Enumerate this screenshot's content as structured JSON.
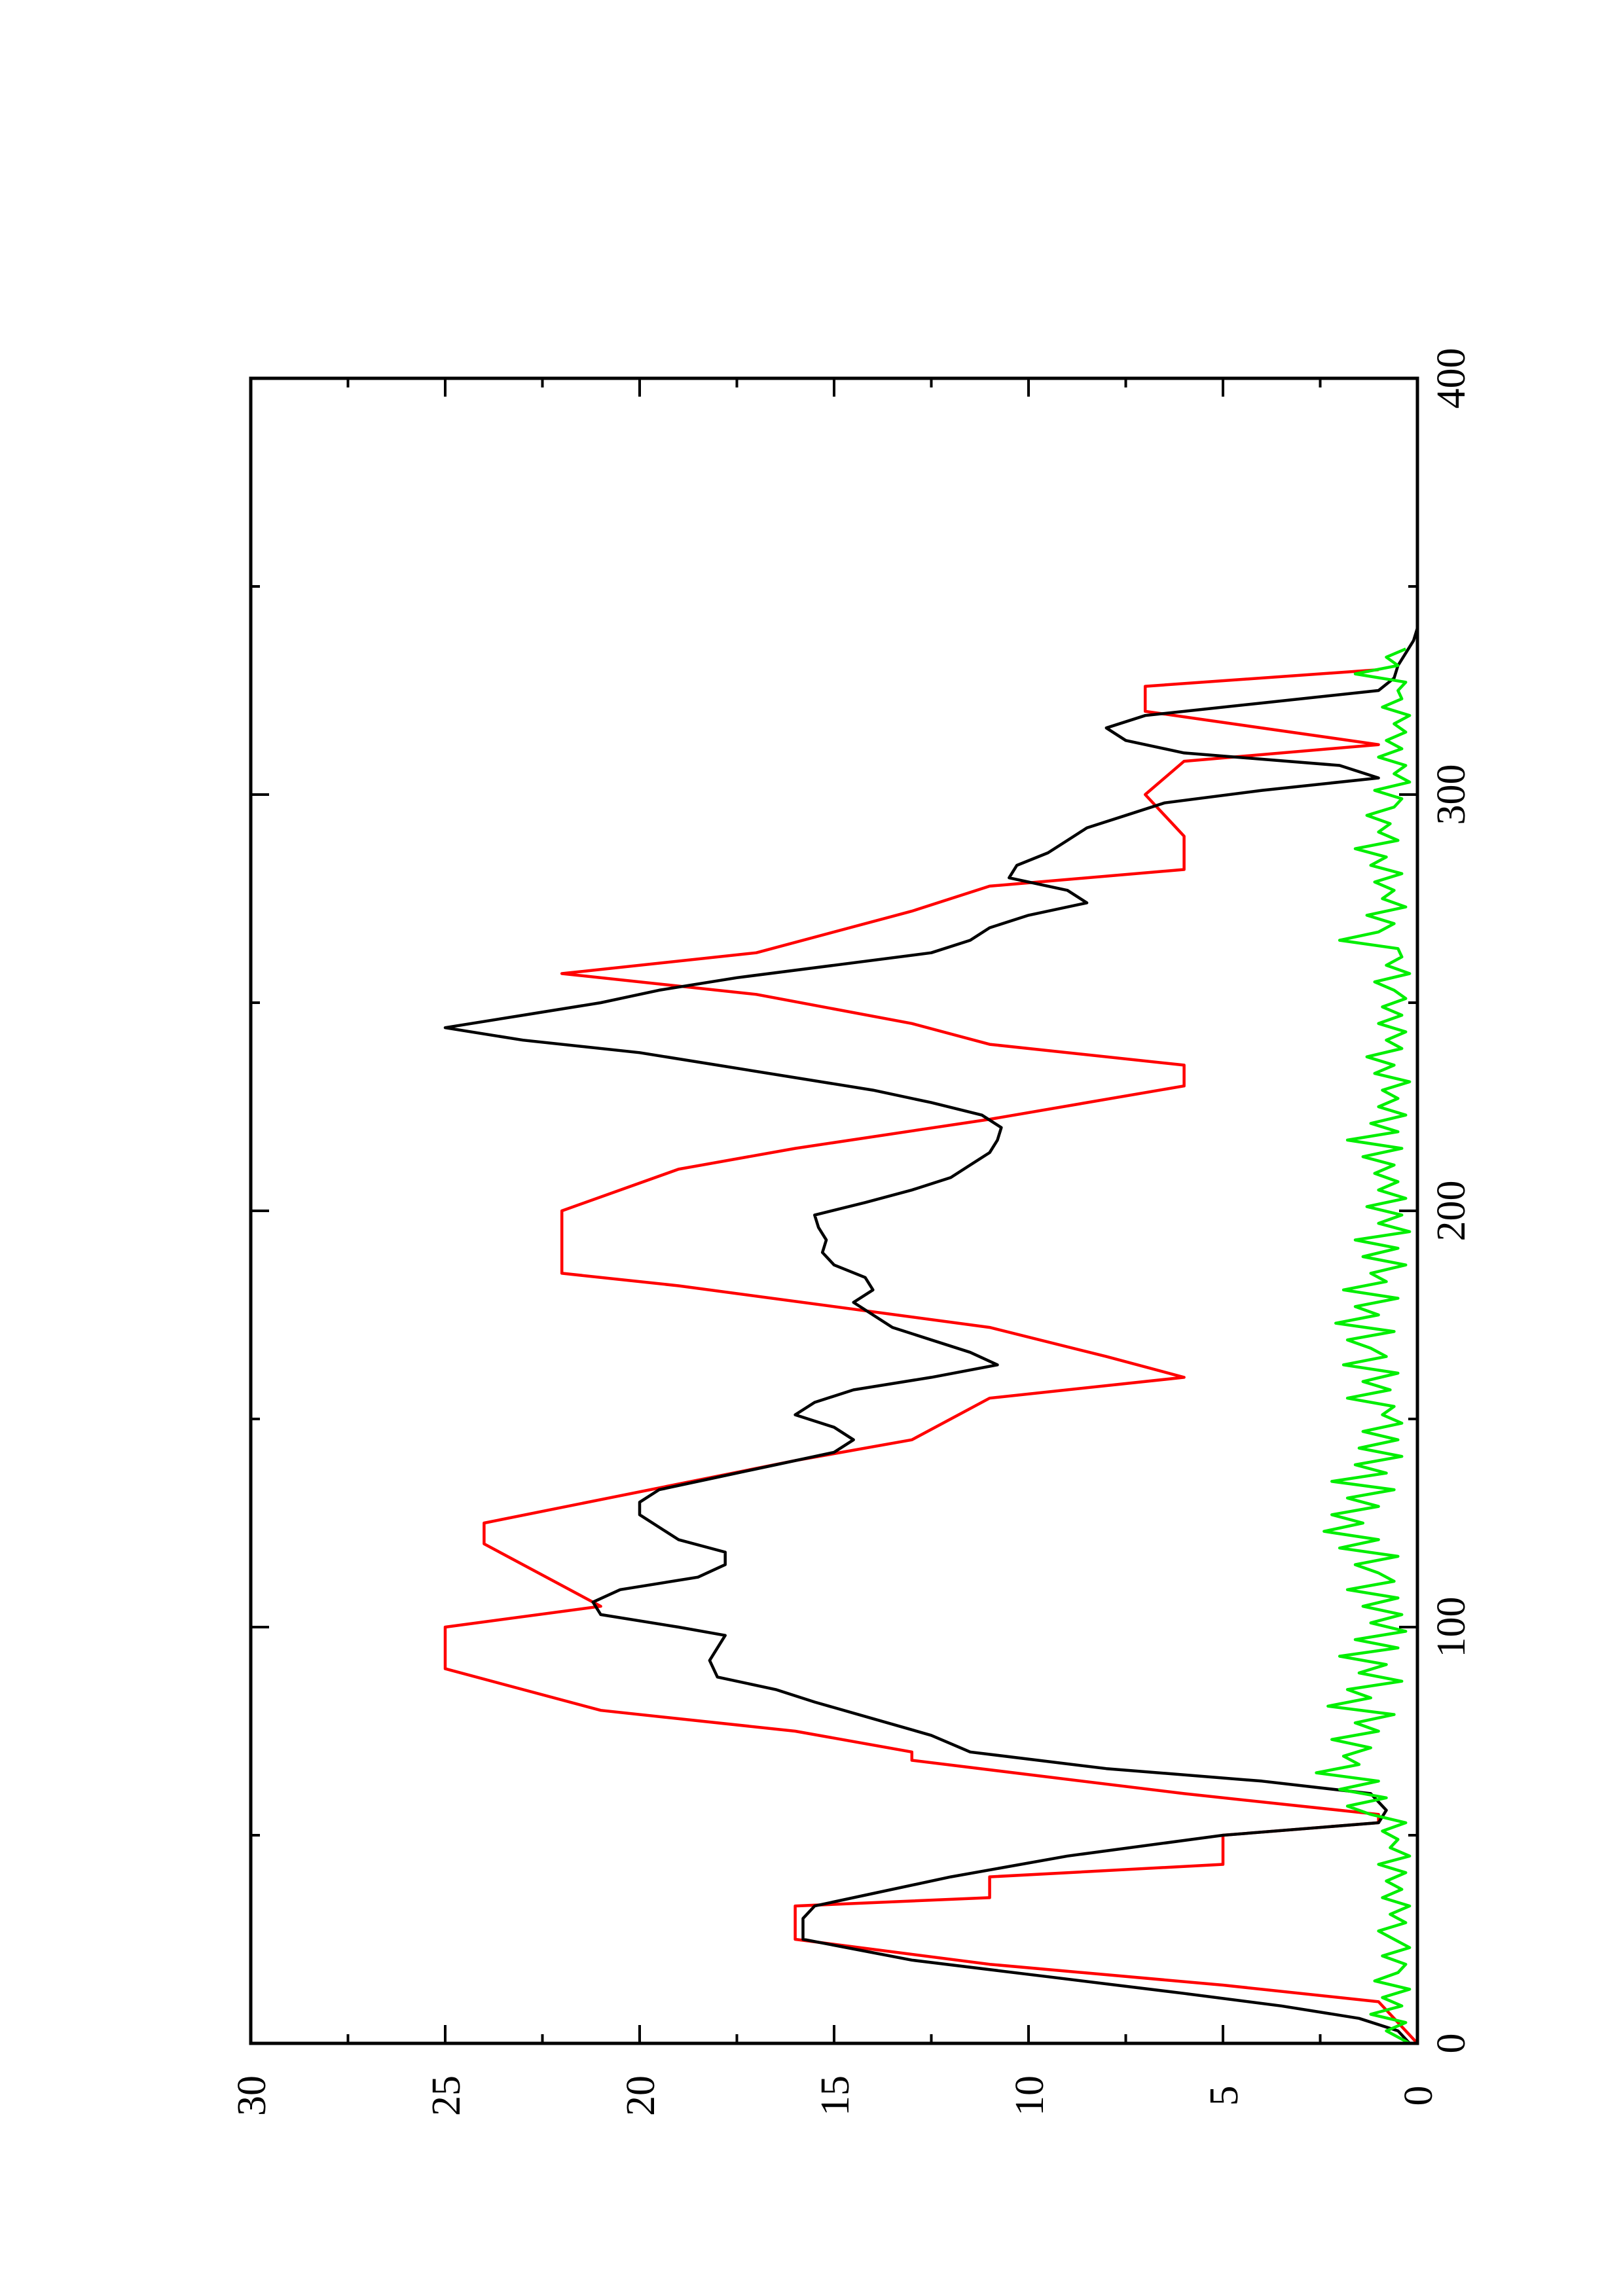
{
  "chart_data": {
    "type": "line",
    "orientation": "rotated-90-ccw",
    "title": "",
    "xlabel": "",
    "ylabel": "",
    "xlim": [
      0,
      400
    ],
    "ylim": [
      0,
      30
    ],
    "x_ticks": [
      0,
      100,
      200,
      300,
      400
    ],
    "y_ticks": [
      0,
      5,
      10,
      15,
      20,
      25,
      30
    ],
    "x_tick_labels": [
      "0",
      "100",
      "200",
      "300",
      "400"
    ],
    "y_tick_labels": [
      "0",
      "5",
      "10",
      "15",
      "20",
      "25",
      "30"
    ],
    "grid": false,
    "legend": "none",
    "series": [
      {
        "color": "#ff0000",
        "x": [
          0,
          10,
          10,
          14,
          14,
          19,
          19,
          25,
          25,
          33,
          33,
          35,
          35,
          40,
          40,
          43,
          43,
          50,
          50,
          53,
          53,
          55,
          55,
          60,
          60,
          68,
          68,
          70,
          70,
          75,
          75,
          80,
          80,
          90,
          90,
          100,
          100,
          105,
          105,
          120,
          120,
          125,
          125,
          140,
          140,
          145,
          145,
          155,
          155,
          160,
          160,
          165,
          165,
          172,
          172,
          182,
          182,
          185,
          185,
          200,
          200,
          210,
          210,
          215,
          215,
          222,
          222,
          230,
          230,
          235,
          235,
          240,
          240,
          245,
          245,
          252,
          252,
          257,
          257,
          262,
          262,
          272,
          272,
          278,
          278,
          282,
          282,
          290,
          290,
          300,
          300,
          308,
          308,
          312,
          312,
          320,
          320,
          326,
          326,
          330
        ],
        "y": [
          0,
          1,
          1,
          5,
          5,
          11,
          11,
          16,
          16,
          16,
          16,
          11,
          11,
          11,
          11,
          5,
          5,
          5,
          5,
          1,
          1,
          1,
          1,
          6,
          6,
          13,
          13,
          13,
          13,
          16,
          16,
          21,
          21,
          25,
          25,
          25,
          25,
          21,
          21,
          24,
          24,
          24,
          24,
          16,
          16,
          13,
          13,
          11,
          11,
          6,
          6,
          8,
          8,
          11,
          11,
          19,
          19,
          22,
          22,
          22,
          22,
          19,
          19,
          16,
          16,
          11,
          11,
          6,
          6,
          6,
          6,
          11,
          11,
          13,
          13,
          17,
          17,
          22,
          22,
          17,
          17,
          13,
          13,
          11,
          11,
          6,
          6,
          6,
          6,
          7,
          7,
          6,
          6,
          1,
          1,
          7,
          7,
          7,
          7,
          1
        ]
      },
      {
        "color": "#000000",
        "x": [
          0,
          3,
          6,
          9,
          12,
          16,
          20,
          25,
          30,
          33,
          36,
          40,
          45,
          50,
          53,
          56,
          60,
          63,
          66,
          70,
          74,
          78,
          82,
          85,
          88,
          92,
          95,
          98,
          100,
          103,
          106,
          109,
          112,
          115,
          118,
          121,
          124,
          127,
          130,
          133,
          136,
          139,
          142,
          145,
          148,
          151,
          154,
          157,
          160,
          163,
          166,
          169,
          172,
          175,
          178,
          181,
          184,
          187,
          190,
          193,
          196,
          199,
          202,
          205,
          208,
          211,
          214,
          217,
          220,
          223,
          226,
          229,
          232,
          235,
          238,
          241,
          244,
          247,
          250,
          253,
          256,
          259,
          262,
          265,
          268,
          271,
          274,
          277,
          280,
          283,
          286,
          289,
          292,
          295,
          298,
          301,
          304,
          307,
          310,
          313,
          316,
          319,
          322,
          325,
          328,
          331,
          334,
          337,
          340
        ],
        "y": [
          0.2,
          0.5,
          1.5,
          3.5,
          6,
          9.5,
          13,
          15.8,
          15.8,
          15.5,
          14,
          12,
          9,
          5,
          1,
          0.8,
          1.2,
          4,
          8,
          11.5,
          12.5,
          14,
          15.5,
          16.5,
          18,
          18.2,
          18,
          17.8,
          19,
          21,
          21.2,
          20.5,
          18.5,
          17.8,
          17.8,
          19,
          19.5,
          20,
          20,
          19.5,
          18,
          16.5,
          15,
          14.5,
          15,
          16,
          15.5,
          14.5,
          12.5,
          10.8,
          11.5,
          12.5,
          13.5,
          14,
          14.5,
          14,
          14.2,
          15,
          15.3,
          15.2,
          15.4,
          15.5,
          14.2,
          13,
          12,
          11.5,
          11,
          10.8,
          10.7,
          11.2,
          12.5,
          14,
          16,
          18,
          20,
          23,
          25,
          23,
          21,
          19.5,
          17.5,
          15,
          12.5,
          11.5,
          11,
          10,
          8.5,
          9,
          10.5,
          10.3,
          9.5,
          9,
          8.5,
          7.5,
          6.5,
          4,
          1,
          2,
          6,
          7.5,
          8,
          7,
          4,
          1,
          0.6,
          0.5,
          0.3,
          0.1,
          0
        ]
      },
      {
        "color": "#00ee00",
        "x": [
          0,
          3,
          5,
          7,
          9,
          11,
          13,
          15,
          17,
          19,
          21,
          23,
          25,
          27,
          29,
          31,
          33,
          35,
          37,
          39,
          41,
          43,
          45,
          47,
          49,
          51,
          53,
          55,
          57,
          59,
          61,
          63,
          65,
          67,
          69,
          71,
          73,
          75,
          77,
          79,
          81,
          83,
          85,
          87,
          89,
          91,
          93,
          95,
          97,
          99,
          101,
          103,
          105,
          107,
          109,
          111,
          113,
          115,
          117,
          119,
          121,
          123,
          125,
          127,
          129,
          131,
          133,
          135,
          137,
          139,
          141,
          143,
          145,
          147,
          149,
          151,
          153,
          155,
          157,
          159,
          161,
          163,
          165,
          167,
          169,
          171,
          173,
          175,
          177,
          179,
          181,
          183,
          185,
          187,
          189,
          191,
          193,
          195,
          197,
          199,
          201,
          203,
          205,
          207,
          209,
          211,
          213,
          215,
          217,
          219,
          221,
          223,
          225,
          227,
          229,
          231,
          233,
          235,
          237,
          239,
          241,
          243,
          245,
          247,
          249,
          251,
          253,
          255,
          257,
          259,
          261,
          263,
          265,
          267,
          269,
          271,
          273,
          275,
          277,
          279,
          281,
          283,
          285,
          287,
          289,
          291,
          293,
          295,
          297,
          299,
          301,
          303,
          305,
          307,
          309,
          311,
          313,
          315,
          317,
          319,
          321,
          323,
          325,
          327,
          329,
          331,
          333,
          335
        ],
        "y": [
          0.2,
          0.8,
          0.3,
          1.2,
          0.4,
          0.9,
          0.2,
          1.1,
          0.5,
          0.3,
          0.9,
          0.2,
          0.6,
          1.0,
          0.3,
          0.7,
          0.2,
          0.9,
          0.4,
          0.8,
          0.3,
          1.0,
          0.2,
          0.7,
          0.5,
          0.9,
          0.3,
          1.2,
          1.8,
          0.8,
          2.0,
          1.0,
          2.6,
          1.5,
          1.9,
          1.2,
          2.2,
          1.0,
          1.6,
          0.6,
          2.3,
          1.2,
          1.8,
          0.4,
          1.5,
          0.8,
          2.0,
          0.5,
          1.6,
          0.3,
          1.2,
          0.4,
          1.4,
          0.5,
          1.8,
          0.6,
          1.0,
          1.6,
          0.5,
          2.0,
          1.0,
          2.4,
          1.4,
          2.2,
          1.0,
          1.8,
          0.6,
          2.2,
          0.8,
          1.6,
          0.4,
          1.5,
          0.5,
          1.4,
          0.4,
          0.9,
          0.6,
          1.8,
          0.7,
          1.4,
          0.5,
          1.9,
          0.8,
          1.2,
          1.8,
          0.6,
          2.1,
          1.0,
          1.6,
          0.5,
          1.9,
          0.8,
          1.2,
          0.3,
          1.4,
          0.5,
          1.6,
          0.2,
          1.0,
          0.4,
          1.3,
          0.3,
          1.0,
          0.5,
          1.1,
          0.6,
          1.4,
          0.4,
          1.8,
          0.5,
          1.2,
          0.3,
          1.0,
          0.5,
          0.9,
          0.2,
          1.1,
          0.6,
          1.3,
          0.4,
          0.8,
          0.3,
          1.0,
          0.4,
          0.9,
          0.3,
          0.6,
          1.1,
          0.2,
          0.8,
          0.4,
          0.5,
          2.0,
          1.0,
          0.6,
          1.3,
          0.3,
          0.9,
          0.6,
          1.1,
          0.4,
          1.2,
          0.8,
          1.6,
          0.5,
          1.0,
          0.7,
          1.3,
          0.6,
          0.4,
          1.1,
          0.2,
          0.6,
          0.3,
          1.0,
          0.4,
          0.8,
          0.3,
          0.6,
          0.2,
          0.9,
          0.4,
          0.5,
          0.3,
          1.6,
          0.5,
          0.8,
          0.3
        ]
      }
    ]
  }
}
